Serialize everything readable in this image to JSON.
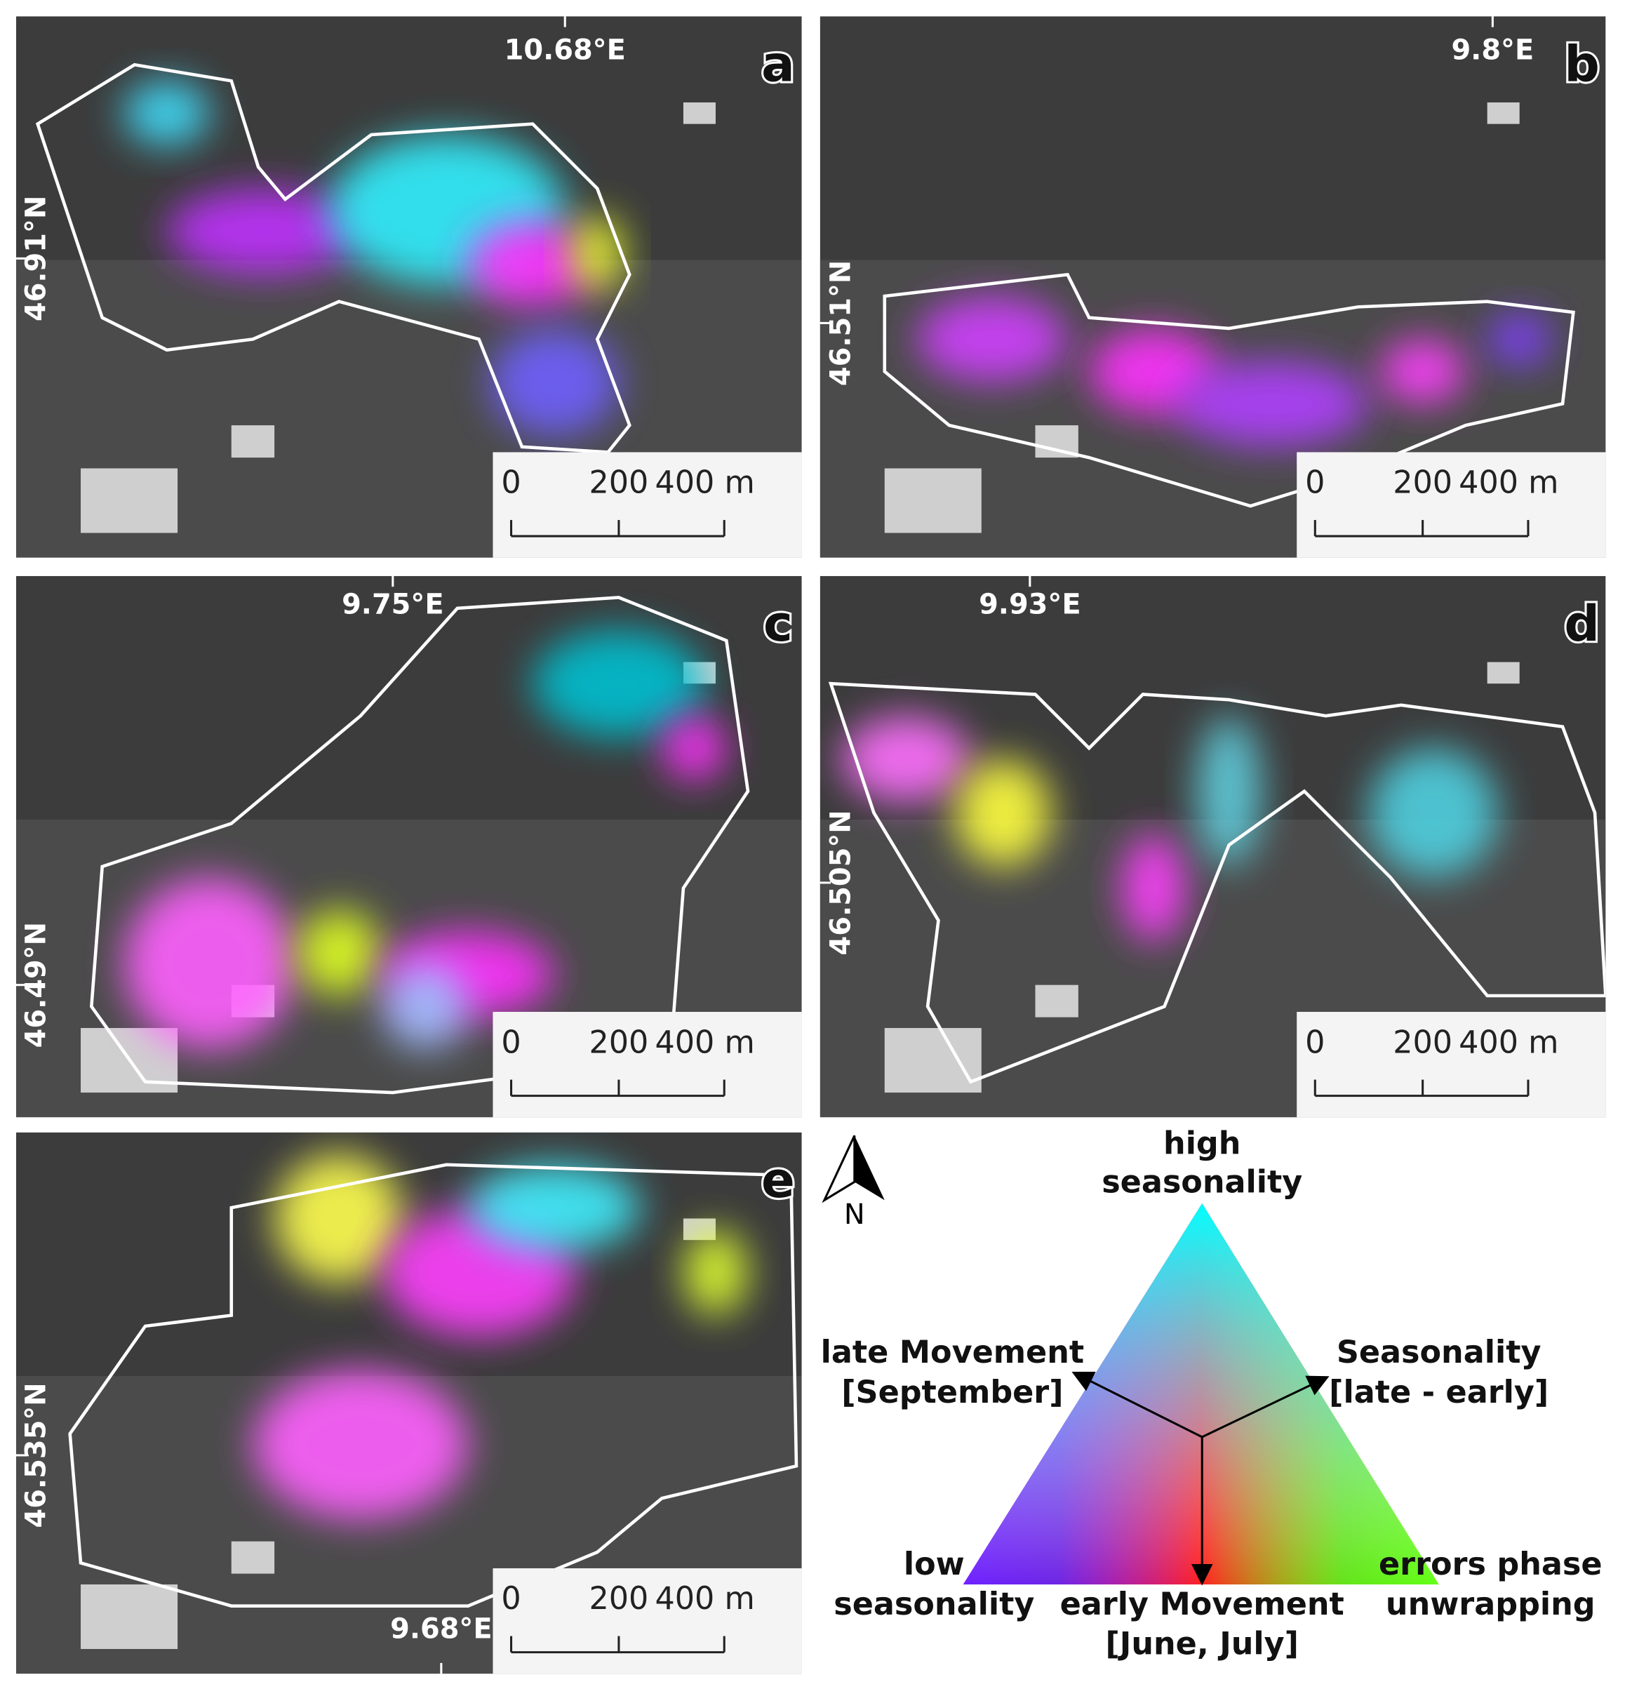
{
  "panels": [
    {
      "letter": "a",
      "lon": "10.68°E",
      "lat": "46.91°N",
      "scale": [
        "0",
        "200",
        "400 m"
      ]
    },
    {
      "letter": "b",
      "lon": "9.8°E",
      "lat": "46.51°N",
      "scale": [
        "0",
        "200",
        "400 m"
      ]
    },
    {
      "letter": "c",
      "lon": "9.75°E",
      "lat": "46.49°N",
      "scale": [
        "0",
        "200",
        "400 m"
      ]
    },
    {
      "letter": "d",
      "lon": "9.93°E",
      "lat": "46.505°N",
      "scale": [
        "0",
        "200",
        "400 m"
      ]
    },
    {
      "letter": "e",
      "lon": "9.68°E",
      "lat": "46.535°N",
      "scale": [
        "0",
        "200",
        "400 m"
      ]
    }
  ],
  "north": "N",
  "legend": {
    "top": [
      "high",
      "seasonality"
    ],
    "upper_left": [
      "late Movement",
      "[September]"
    ],
    "upper_right": [
      "Seasonality",
      "[late - early]"
    ],
    "bottom_left": [
      "low",
      "seasonality"
    ],
    "bottom_middle": [
      "early Movement",
      "[June, July]"
    ],
    "bottom_right": [
      "errors phase",
      "unwrapping"
    ]
  }
}
